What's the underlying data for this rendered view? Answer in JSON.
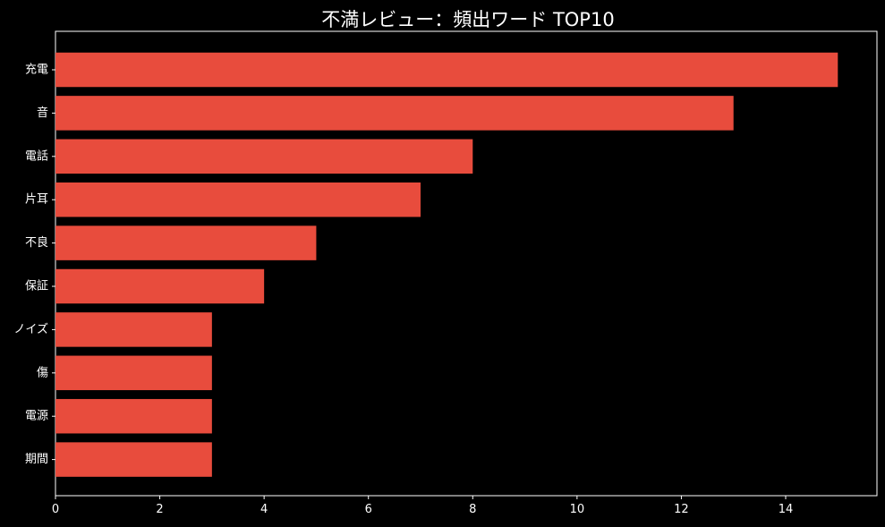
{
  "chart_data": {
    "type": "bar",
    "orientation": "horizontal",
    "title": "不満レビュー：頻出ワード TOP10",
    "xlabel": "",
    "ylabel": "",
    "categories": [
      "充電",
      "音",
      "電話",
      "片耳",
      "不良",
      "保証",
      "ノイズ",
      "傷",
      "電源",
      "期間"
    ],
    "values": [
      15,
      13,
      8,
      7,
      5,
      4,
      3,
      3,
      3,
      3
    ],
    "xlim": [
      0,
      15.75
    ],
    "xticks": [
      0,
      2,
      4,
      6,
      8,
      10,
      12,
      14
    ],
    "grid": false,
    "colors": {
      "bar": "#e84c3d",
      "background": "#000000",
      "axis": "#ffffff",
      "text": "#ffffff"
    }
  }
}
